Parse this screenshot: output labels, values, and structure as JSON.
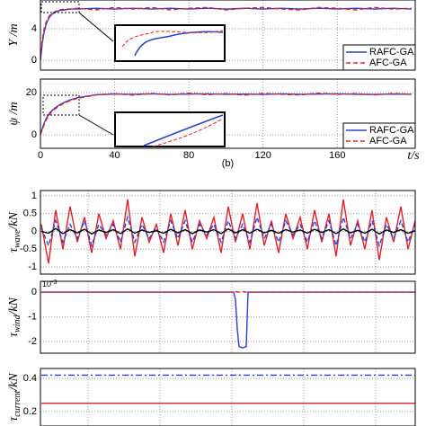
{
  "chart_data": [
    {
      "type": "line",
      "ylabel": {
        "main": "Y",
        "unit": " /m"
      },
      "x": [
        0,
        1,
        2,
        3,
        4,
        5,
        6,
        8,
        10,
        13,
        16,
        20,
        30,
        40,
        50,
        60,
        70,
        80,
        90,
        100,
        110,
        120,
        130,
        140,
        150,
        160,
        170,
        180,
        190,
        200
      ],
      "series": [
        {
          "name": "RAFC-GA",
          "color": "#2a3fcf",
          "linestyle": "solid",
          "values": [
            0,
            2.2,
            3.6,
            4.5,
            5.1,
            5.5,
            5.8,
            6.1,
            6.3,
            6.4,
            6.5,
            6.5,
            6.6,
            6.5,
            6.6,
            6.5,
            6.6,
            6.5,
            6.6,
            6.5,
            6.6,
            6.5,
            6.6,
            6.5,
            6.6,
            6.5,
            6.6,
            6.5,
            6.6,
            6.5
          ]
        },
        {
          "name": "AFC-GA",
          "color": "#e0202a",
          "linestyle": "dashed",
          "values": [
            0,
            2.6,
            4.0,
            4.8,
            5.3,
            5.7,
            5.9,
            6.2,
            6.4,
            6.5,
            6.5,
            6.6,
            6.4,
            6.7,
            6.5,
            6.7,
            6.4,
            6.6,
            6.7,
            6.4,
            6.6,
            6.7,
            6.5,
            6.4,
            6.7,
            6.6,
            6.4,
            6.7,
            6.5,
            6.6
          ]
        }
      ],
      "xlim": [
        0,
        202
      ],
      "xticks": [
        0,
        40,
        80,
        120,
        160
      ],
      "show_xtick_labels": false,
      "ylim": [
        -1.25,
        7.65
      ],
      "yticks": [
        0,
        4
      ],
      "grid": true,
      "legend": "lower right"
    },
    {
      "type": "line",
      "ylabel": {
        "main": "ψ",
        "unit": " /m"
      },
      "xlabel": "t/s",
      "caption": "(b)",
      "x": [
        0,
        1,
        2,
        3,
        4,
        5,
        6,
        8,
        10,
        13,
        16,
        20,
        30,
        40,
        50,
        60,
        70,
        80,
        90,
        100,
        110,
        120,
        130,
        140,
        150,
        160,
        170,
        180,
        190,
        200
      ],
      "series": [
        {
          "name": "RAFC-GA",
          "color": "#2a3fcf",
          "linestyle": "solid",
          "values": [
            0,
            3,
            5.5,
            7.5,
            9,
            10.3,
            11.3,
            12.8,
            14,
            15.4,
            16.5,
            17.6,
            19,
            19.3,
            19.2,
            19.4,
            19.1,
            19.3,
            19.4,
            19.2,
            19.3,
            19.1,
            19.4,
            19.2,
            19.3,
            19.4,
            19.2,
            19.1,
            19.3,
            19.2
          ]
        },
        {
          "name": "AFC-GA",
          "color": "#e0202a",
          "linestyle": "dashed",
          "values": [
            0,
            2.5,
            4.8,
            6.8,
            8.3,
            9.6,
            10.8,
            12.3,
            13.6,
            15,
            16.2,
            17.3,
            18.9,
            19.5,
            18.8,
            19.6,
            18.9,
            19.7,
            19,
            19.5,
            18.8,
            19.6,
            19.2,
            18.9,
            19.7,
            19.1,
            19.5,
            18.9,
            19.6,
            19.2
          ]
        }
      ],
      "xlim": [
        0,
        202
      ],
      "xticks": [
        0,
        40,
        80,
        120,
        160
      ],
      "show_xtick_labels": true,
      "ylim": [
        -6.4,
        26.4
      ],
      "yticks": [
        0,
        20
      ],
      "grid": true,
      "legend": "lower right"
    },
    {
      "type": "line",
      "ylabel": {
        "main": "τ",
        "sub": "wave",
        "unit": "/kN"
      },
      "x": [
        -26,
        -22,
        -18,
        -14,
        -10,
        -6,
        -2,
        2,
        6,
        10,
        14,
        18,
        22,
        26,
        30,
        34,
        38,
        42,
        46,
        50,
        54,
        58,
        62,
        66,
        70,
        74,
        78,
        82,
        86,
        90,
        94,
        98,
        102,
        106,
        110,
        114,
        118,
        122,
        126,
        130,
        134,
        138,
        142,
        146,
        150,
        154,
        158,
        162,
        166,
        170,
        174,
        178,
        182
      ],
      "series": [
        {
          "color": "#e0202a",
          "linestyle": "solid",
          "values": [
            0.2,
            -0.9,
            0.6,
            -0.5,
            0.7,
            -0.3,
            0.4,
            -0.6,
            0.5,
            -0.2,
            0.3,
            -0.5,
            0.9,
            -0.7,
            0.4,
            -0.3,
            0.2,
            -0.6,
            0.5,
            -0.4,
            0.6,
            -0.5,
            0.3,
            -0.2,
            0.4,
            -0.6,
            0.7,
            -0.3,
            0.5,
            -0.5,
            0.8,
            -0.4,
            0.3,
            -0.6,
            0.5,
            -0.2,
            0.4,
            -0.5,
            0.6,
            -0.3,
            0.5,
            -0.7,
            0.9,
            -0.4,
            0.3,
            -0.5,
            0.6,
            -0.8,
            0.4,
            -0.3,
            0.7,
            -0.5,
            0.3
          ]
        },
        {
          "color": "#2a3fcf",
          "linestyle": "dashed",
          "values": [
            0.1,
            -0.4,
            0.3,
            -0.3,
            0.2,
            -0.2,
            0.3,
            -0.4,
            0.2,
            -0.1,
            0.2,
            -0.3,
            0.4,
            -0.3,
            0.2,
            -0.2,
            0.1,
            -0.3,
            0.3,
            -0.2,
            0.3,
            -0.3,
            0.2,
            -0.1,
            0.2,
            -0.3,
            0.3,
            -0.2,
            0.2,
            -0.3,
            0.4,
            -0.2,
            0.2,
            -0.3,
            0.3,
            -0.1,
            0.2,
            -0.3,
            0.3,
            -0.2,
            0.3,
            -0.4,
            0.4,
            -0.2,
            0.2,
            -0.3,
            0.3,
            -0.4,
            0.2,
            -0.2,
            0.3,
            -0.3,
            0.2
          ]
        },
        {
          "color": "#000000",
          "linestyle": "solid",
          "values": [
            0,
            -0.05,
            0.08,
            -0.06,
            0.05,
            -0.04,
            0.06,
            -0.07,
            0.04,
            -0.03,
            0.05,
            -0.06,
            0.07,
            -0.05,
            0.04,
            -0.03,
            0.02,
            -0.05,
            0.06,
            -0.04,
            0.05,
            -0.06,
            0.04,
            -0.02,
            0.05,
            -0.06,
            0.07,
            -0.04,
            0.05,
            -0.05,
            0.06,
            -0.04,
            0.03,
            -0.05,
            0.05,
            -0.02,
            0.04,
            -0.05,
            0.06,
            -0.03,
            0.05,
            -0.06,
            0.07,
            -0.04,
            0.03,
            -0.05,
            0.06,
            -0.07,
            0.04,
            -0.03,
            0.05,
            -0.05,
            0.02
          ]
        }
      ],
      "xlim": [
        -26.5,
        182
      ],
      "xticks": [
        0,
        40,
        80,
        120,
        160
      ],
      "show_xtick_labels": false,
      "ylim": [
        -1.2,
        1.15
      ],
      "yticks": [
        -1,
        -0.5,
        0,
        0.5,
        1
      ],
      "grid": true
    },
    {
      "type": "line",
      "ylabel": {
        "main": "τ",
        "sub": "wind",
        "unit": "/kN"
      },
      "scale_label": {
        "base": "10",
        "exp": "-3"
      },
      "x": [
        -26,
        81,
        82,
        83,
        84,
        86,
        88,
        89,
        182
      ],
      "series": [
        {
          "color": "#2a3fcf",
          "linestyle": "solid",
          "values": [
            0,
            0,
            -0.3,
            -1.5,
            -2.2,
            -2.25,
            -2.2,
            0,
            0
          ]
        },
        {
          "color": "#e0202a",
          "linestyle": "dashed",
          "values": [
            0,
            0,
            0.02,
            0.01,
            0,
            0.02,
            0,
            0,
            0
          ]
        }
      ],
      "xlim": [
        -26.5,
        182
      ],
      "xticks": [
        0,
        40,
        80,
        120,
        160
      ],
      "show_xtick_labels": false,
      "ylim": [
        -2.47,
        0.44
      ],
      "yticks": [
        -2,
        -1,
        0
      ],
      "grid": true
    },
    {
      "type": "line",
      "ylabel": {
        "main": "τ",
        "sub": "current",
        "unit": "/kN"
      },
      "x": [
        -26,
        182
      ],
      "series": [
        {
          "color": "#2a3fcf",
          "linestyle": "dashdot",
          "values": [
            0.42,
            0.42
          ]
        },
        {
          "color": "#e0202a",
          "linestyle": "solid",
          "values": [
            0.25,
            0.25
          ]
        }
      ],
      "xlim": [
        -26.5,
        182
      ],
      "xticks": [
        0,
        40,
        80,
        120,
        160
      ],
      "show_xtick_labels": false,
      "ylim": [
        0.113,
        0.46
      ],
      "yticks": [
        0.2,
        0.4
      ],
      "grid": true
    }
  ]
}
